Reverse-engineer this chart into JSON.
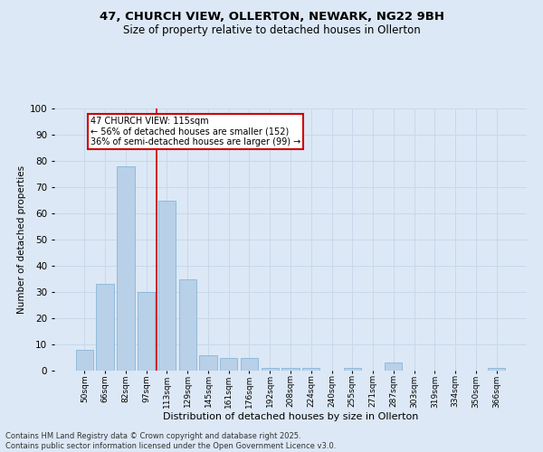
{
  "title_line1": "47, CHURCH VIEW, OLLERTON, NEWARK, NG22 9BH",
  "title_line2": "Size of property relative to detached houses in Ollerton",
  "xlabel": "Distribution of detached houses by size in Ollerton",
  "ylabel": "Number of detached properties",
  "categories": [
    "50sqm",
    "66sqm",
    "82sqm",
    "97sqm",
    "113sqm",
    "129sqm",
    "145sqm",
    "161sqm",
    "176sqm",
    "192sqm",
    "208sqm",
    "224sqm",
    "240sqm",
    "255sqm",
    "271sqm",
    "287sqm",
    "303sqm",
    "319sqm",
    "334sqm",
    "350sqm",
    "366sqm"
  ],
  "values": [
    8,
    33,
    78,
    30,
    65,
    35,
    6,
    5,
    5,
    1,
    1,
    1,
    0,
    1,
    0,
    3,
    0,
    0,
    0,
    0,
    1
  ],
  "bar_color": "#b8d0e8",
  "bar_edge_color": "#7aafd4",
  "grid_color": "#c8d8ea",
  "bg_color": "#dce8f5",
  "vline_color": "#cc0000",
  "vline_pos": 3.5,
  "annotation_text": "47 CHURCH VIEW: 115sqm\n← 56% of detached houses are smaller (152)\n36% of semi-detached houses are larger (99) →",
  "annotation_box_facecolor": "#ffffff",
  "annotation_box_edgecolor": "#cc0000",
  "ylim": [
    0,
    100
  ],
  "yticks": [
    0,
    10,
    20,
    30,
    40,
    50,
    60,
    70,
    80,
    90,
    100
  ],
  "footer_text": "Contains HM Land Registry data © Crown copyright and database right 2025.\nContains public sector information licensed under the Open Government Licence v3.0."
}
